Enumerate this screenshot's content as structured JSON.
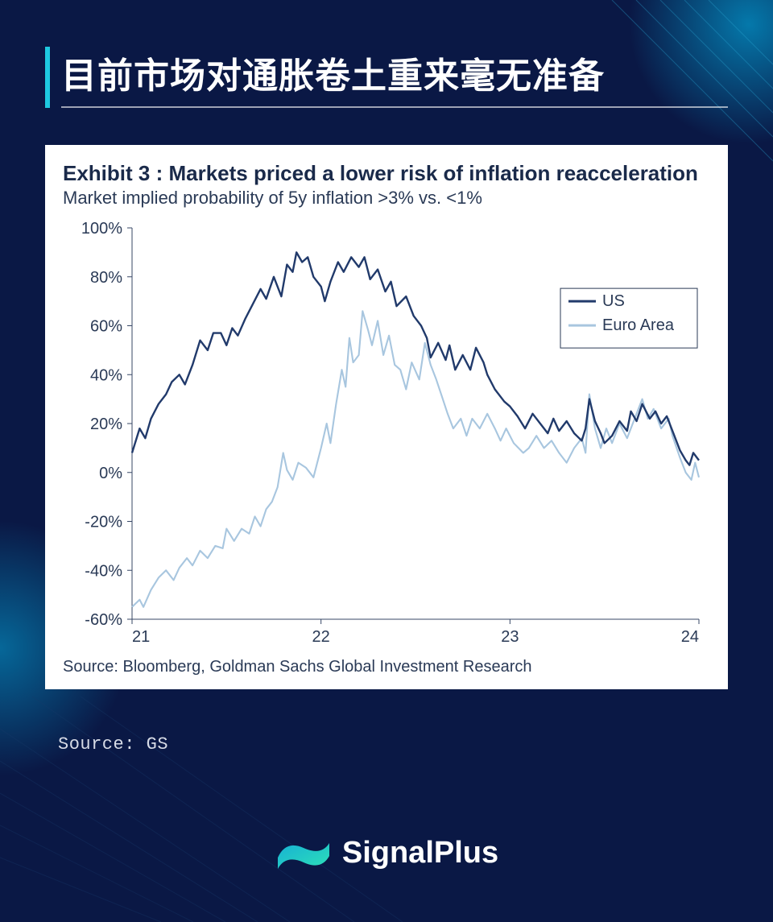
{
  "page": {
    "background_color": "#0a1845",
    "accent_glow": "#00c8ff",
    "brand": "SignalPlus",
    "brand_logo_colors": {
      "from": "#17b1d4",
      "to": "#2de0b8"
    }
  },
  "header": {
    "title": "目前市场对通胀卷土重来毫无准备",
    "title_color": "#ffffff",
    "title_fontsize": 44,
    "accent_bar_color": "#1ec8e0",
    "underline_color": "rgba(255,255,255,0.6)"
  },
  "outer_source": "Source: GS",
  "figure": {
    "title": "Exhibit 3 : Markets priced a lower risk of inflation reacceleration",
    "subtitle": "Market implied probability of 5y inflation >3% vs. <1%",
    "source": "Source: Bloomberg, Goldman Sachs Global Investment Research",
    "title_color": "#1a2a4a",
    "title_fontsize": 26,
    "subtitle_fontsize": 22,
    "chart": {
      "type": "line",
      "background_color": "#ffffff",
      "axis_color": "#374766",
      "axis_width": 1,
      "x": {
        "lim": [
          21,
          24
        ],
        "ticks": [
          21,
          22,
          23,
          24
        ],
        "tick_labels": [
          "21",
          "22",
          "23",
          "24"
        ],
        "tick_fontsize": 20,
        "tick_color": "#2a3a56"
      },
      "y": {
        "lim": [
          -60,
          100
        ],
        "ticks": [
          -60,
          -40,
          -20,
          0,
          20,
          40,
          60,
          80,
          100
        ],
        "tick_labels": [
          "-60%",
          "-40%",
          "-20%",
          "0%",
          "20%",
          "40%",
          "60%",
          "80%",
          "100%"
        ],
        "tick_fontsize": 20,
        "tick_color": "#2a3a56"
      },
      "legend": {
        "position": "right",
        "border_color": "#2a3a56",
        "items": [
          {
            "label": "US",
            "color": "#213a6b"
          },
          {
            "label": "Euro Area",
            "color": "#a8c6df"
          }
        ],
        "fontsize": 20
      },
      "series": [
        {
          "name": "US",
          "color": "#213a6b",
          "line_width": 2.4,
          "points": [
            [
              21.0,
              8
            ],
            [
              21.04,
              18
            ],
            [
              21.07,
              14
            ],
            [
              21.1,
              22
            ],
            [
              21.14,
              28
            ],
            [
              21.18,
              32
            ],
            [
              21.21,
              37
            ],
            [
              21.25,
              40
            ],
            [
              21.28,
              36
            ],
            [
              21.32,
              44
            ],
            [
              21.36,
              54
            ],
            [
              21.4,
              50
            ],
            [
              21.43,
              57
            ],
            [
              21.47,
              57
            ],
            [
              21.5,
              52
            ],
            [
              21.53,
              59
            ],
            [
              21.56,
              56
            ],
            [
              21.6,
              63
            ],
            [
              21.64,
              69
            ],
            [
              21.68,
              75
            ],
            [
              21.71,
              71
            ],
            [
              21.75,
              80
            ],
            [
              21.79,
              72
            ],
            [
              21.82,
              85
            ],
            [
              21.85,
              82
            ],
            [
              21.87,
              90
            ],
            [
              21.9,
              86
            ],
            [
              21.93,
              88
            ],
            [
              21.96,
              80
            ],
            [
              22.0,
              76
            ],
            [
              22.02,
              70
            ],
            [
              22.05,
              78
            ],
            [
              22.09,
              86
            ],
            [
              22.12,
              82
            ],
            [
              22.16,
              88
            ],
            [
              22.2,
              84
            ],
            [
              22.23,
              88
            ],
            [
              22.26,
              79
            ],
            [
              22.3,
              83
            ],
            [
              22.34,
              74
            ],
            [
              22.37,
              78
            ],
            [
              22.4,
              68
            ],
            [
              22.45,
              72
            ],
            [
              22.49,
              64
            ],
            [
              22.53,
              60
            ],
            [
              22.56,
              55
            ],
            [
              22.58,
              47
            ],
            [
              22.62,
              53
            ],
            [
              22.66,
              46
            ],
            [
              22.68,
              52
            ],
            [
              22.71,
              42
            ],
            [
              22.75,
              48
            ],
            [
              22.79,
              42
            ],
            [
              22.82,
              51
            ],
            [
              22.86,
              45
            ],
            [
              22.88,
              40
            ],
            [
              22.92,
              34
            ],
            [
              22.97,
              29
            ],
            [
              23.0,
              27
            ],
            [
              23.04,
              23
            ],
            [
              23.08,
              18
            ],
            [
              23.12,
              24
            ],
            [
              23.16,
              20
            ],
            [
              23.2,
              16
            ],
            [
              23.23,
              22
            ],
            [
              23.26,
              17
            ],
            [
              23.3,
              21
            ],
            [
              23.34,
              16
            ],
            [
              23.38,
              13
            ],
            [
              23.4,
              18
            ],
            [
              23.42,
              30
            ],
            [
              23.45,
              21
            ],
            [
              23.48,
              16
            ],
            [
              23.5,
              12
            ],
            [
              23.54,
              15
            ],
            [
              23.58,
              21
            ],
            [
              23.62,
              17
            ],
            [
              23.64,
              25
            ],
            [
              23.67,
              21
            ],
            [
              23.7,
              28
            ],
            [
              23.74,
              22
            ],
            [
              23.77,
              25
            ],
            [
              23.8,
              20
            ],
            [
              23.83,
              23
            ],
            [
              23.87,
              15
            ],
            [
              23.9,
              9
            ],
            [
              23.93,
              5
            ],
            [
              23.95,
              3
            ],
            [
              23.97,
              8
            ],
            [
              24.0,
              5
            ]
          ]
        },
        {
          "name": "Euro Area",
          "color": "#a8c6df",
          "line_width": 2.1,
          "points": [
            [
              21.0,
              -55
            ],
            [
              21.04,
              -52
            ],
            [
              21.06,
              -55
            ],
            [
              21.1,
              -48
            ],
            [
              21.14,
              -43
            ],
            [
              21.18,
              -40
            ],
            [
              21.22,
              -44
            ],
            [
              21.25,
              -39
            ],
            [
              21.29,
              -35
            ],
            [
              21.32,
              -38
            ],
            [
              21.36,
              -32
            ],
            [
              21.4,
              -35
            ],
            [
              21.44,
              -30
            ],
            [
              21.48,
              -31
            ],
            [
              21.5,
              -23
            ],
            [
              21.54,
              -28
            ],
            [
              21.58,
              -23
            ],
            [
              21.62,
              -25
            ],
            [
              21.65,
              -18
            ],
            [
              21.68,
              -22
            ],
            [
              21.71,
              -15
            ],
            [
              21.74,
              -12
            ],
            [
              21.77,
              -6
            ],
            [
              21.8,
              8
            ],
            [
              21.82,
              1
            ],
            [
              21.85,
              -3
            ],
            [
              21.88,
              4
            ],
            [
              21.92,
              2
            ],
            [
              21.96,
              -2
            ],
            [
              22.0,
              10
            ],
            [
              22.03,
              20
            ],
            [
              22.05,
              12
            ],
            [
              22.08,
              28
            ],
            [
              22.11,
              42
            ],
            [
              22.13,
              35
            ],
            [
              22.15,
              55
            ],
            [
              22.17,
              45
            ],
            [
              22.2,
              48
            ],
            [
              22.22,
              66
            ],
            [
              22.25,
              58
            ],
            [
              22.27,
              52
            ],
            [
              22.3,
              62
            ],
            [
              22.33,
              48
            ],
            [
              22.36,
              56
            ],
            [
              22.39,
              44
            ],
            [
              22.42,
              42
            ],
            [
              22.45,
              34
            ],
            [
              22.48,
              45
            ],
            [
              22.52,
              38
            ],
            [
              22.55,
              53
            ],
            [
              22.58,
              44
            ],
            [
              22.61,
              38
            ],
            [
              22.64,
              31
            ],
            [
              22.67,
              24
            ],
            [
              22.7,
              18
            ],
            [
              22.74,
              22
            ],
            [
              22.77,
              15
            ],
            [
              22.8,
              22
            ],
            [
              22.84,
              18
            ],
            [
              22.88,
              24
            ],
            [
              22.92,
              18
            ],
            [
              22.95,
              13
            ],
            [
              22.98,
              18
            ],
            [
              23.02,
              12
            ],
            [
              23.07,
              8
            ],
            [
              23.1,
              10
            ],
            [
              23.14,
              15
            ],
            [
              23.18,
              10
            ],
            [
              23.22,
              13
            ],
            [
              23.26,
              8
            ],
            [
              23.3,
              4
            ],
            [
              23.34,
              10
            ],
            [
              23.38,
              14
            ],
            [
              23.4,
              8
            ],
            [
              23.42,
              32
            ],
            [
              23.45,
              18
            ],
            [
              23.48,
              10
            ],
            [
              23.51,
              18
            ],
            [
              23.54,
              12
            ],
            [
              23.58,
              20
            ],
            [
              23.62,
              14
            ],
            [
              23.66,
              22
            ],
            [
              23.7,
              30
            ],
            [
              23.73,
              22
            ],
            [
              23.76,
              26
            ],
            [
              23.8,
              18
            ],
            [
              23.84,
              22
            ],
            [
              23.86,
              15
            ],
            [
              23.9,
              6
            ],
            [
              23.93,
              0
            ],
            [
              23.96,
              -3
            ],
            [
              23.98,
              4
            ],
            [
              24.0,
              -2
            ]
          ]
        }
      ]
    }
  }
}
